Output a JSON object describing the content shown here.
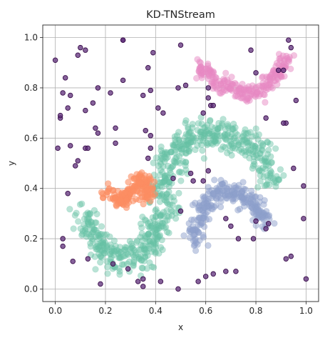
{
  "chart_data": {
    "type": "scatter",
    "title": "KD-TNStream",
    "xlabel": "x",
    "ylabel": "y",
    "xlim": [
      -0.05,
      1.05
    ],
    "ylim": [
      -0.05,
      1.05
    ],
    "xticks": [
      "0.0",
      "0.2",
      "0.4",
      "0.6",
      "0.8",
      "1.0"
    ],
    "yticks": [
      "0.0",
      "0.2",
      "0.4",
      "0.6",
      "0.8",
      "1.0"
    ],
    "grid": true,
    "legend": "none",
    "clusters": [
      {
        "color": "#66c2a5",
        "alpha": 0.45,
        "shape": "S-shaped band",
        "path": [
          [
            0.1,
            0.28
          ],
          [
            0.13,
            0.27
          ],
          [
            0.15,
            0.24
          ],
          [
            0.17,
            0.19
          ],
          [
            0.2,
            0.15
          ],
          [
            0.24,
            0.13
          ],
          [
            0.29,
            0.12
          ],
          [
            0.34,
            0.13
          ],
          [
            0.38,
            0.18
          ],
          [
            0.41,
            0.25
          ],
          [
            0.43,
            0.33
          ],
          [
            0.44,
            0.41
          ],
          [
            0.45,
            0.48
          ],
          [
            0.47,
            0.54
          ],
          [
            0.51,
            0.58
          ],
          [
            0.56,
            0.61
          ],
          [
            0.62,
            0.62
          ],
          [
            0.68,
            0.61
          ],
          [
            0.74,
            0.59
          ],
          [
            0.79,
            0.56
          ],
          [
            0.83,
            0.51
          ],
          [
            0.86,
            0.46
          ],
          [
            0.87,
            0.42
          ]
        ],
        "width": 0.07
      },
      {
        "color": "#fc8d62",
        "alpha": 0.6,
        "shape": "small wave",
        "path": [
          [
            0.19,
            0.39
          ],
          [
            0.22,
            0.38
          ],
          [
            0.25,
            0.36
          ],
          [
            0.28,
            0.35
          ],
          [
            0.3,
            0.36
          ],
          [
            0.31,
            0.4
          ],
          [
            0.33,
            0.44
          ],
          [
            0.35,
            0.44
          ],
          [
            0.37,
            0.4
          ],
          [
            0.37,
            0.35
          ]
        ],
        "width": 0.035
      },
      {
        "color": "#8da0cb",
        "alpha": 0.5,
        "shape": "arc band",
        "path": [
          [
            0.56,
            0.19
          ],
          [
            0.56,
            0.24
          ],
          [
            0.58,
            0.3
          ],
          [
            0.61,
            0.35
          ],
          [
            0.65,
            0.38
          ],
          [
            0.7,
            0.39
          ],
          [
            0.75,
            0.38
          ],
          [
            0.79,
            0.34
          ],
          [
            0.82,
            0.3
          ],
          [
            0.84,
            0.26
          ]
        ],
        "width": 0.045
      },
      {
        "color": "#e78ac3",
        "alpha": 0.5,
        "shape": "W band",
        "path": [
          [
            0.57,
            0.89
          ],
          [
            0.6,
            0.86
          ],
          [
            0.64,
            0.83
          ],
          [
            0.68,
            0.81
          ],
          [
            0.73,
            0.79
          ],
          [
            0.77,
            0.78
          ],
          [
            0.81,
            0.79
          ],
          [
            0.84,
            0.81
          ],
          [
            0.87,
            0.84
          ],
          [
            0.9,
            0.88
          ],
          [
            0.92,
            0.92
          ]
        ],
        "width": 0.035
      }
    ],
    "noise": {
      "color": "#5e2d79",
      "edgecolor": "#3b0f4c",
      "points": [
        [
          0.0,
          0.91
        ],
        [
          0.02,
          0.68
        ],
        [
          0.03,
          0.78
        ],
        [
          0.04,
          0.84
        ],
        [
          0.05,
          0.72
        ],
        [
          0.06,
          0.77
        ],
        [
          0.09,
          0.93
        ],
        [
          0.1,
          0.96
        ],
        [
          0.12,
          0.95
        ],
        [
          0.12,
          0.71
        ],
        [
          0.15,
          0.74
        ],
        [
          0.17,
          0.8
        ],
        [
          0.22,
          0.78
        ],
        [
          0.27,
          0.99
        ],
        [
          0.27,
          0.99
        ],
        [
          0.27,
          0.83
        ],
        [
          0.35,
          0.77
        ],
        [
          0.37,
          0.88
        ],
        [
          0.38,
          0.79
        ],
        [
          0.39,
          0.94
        ],
        [
          0.41,
          0.72
        ],
        [
          0.43,
          0.7
        ],
        [
          0.49,
          0.8
        ],
        [
          0.5,
          0.97
        ],
        [
          0.52,
          0.81
        ],
        [
          0.59,
          0.7
        ],
        [
          0.61,
          0.76
        ],
        [
          0.61,
          0.8
        ],
        [
          0.62,
          0.73
        ],
        [
          0.63,
          0.73
        ],
        [
          0.78,
          0.95
        ],
        [
          0.8,
          0.86
        ],
        [
          0.84,
          0.68
        ],
        [
          0.89,
          0.87
        ],
        [
          0.91,
          0.87
        ],
        [
          0.92,
          0.66
        ],
        [
          0.93,
          0.99
        ],
        [
          0.94,
          0.96
        ],
        [
          0.96,
          0.75
        ],
        [
          0.02,
          0.69
        ],
        [
          0.01,
          0.56
        ],
        [
          0.06,
          0.57
        ],
        [
          0.08,
          0.49
        ],
        [
          0.09,
          0.51
        ],
        [
          0.12,
          0.56
        ],
        [
          0.13,
          0.56
        ],
        [
          0.16,
          0.64
        ],
        [
          0.17,
          0.62
        ],
        [
          0.24,
          0.58
        ],
        [
          0.24,
          0.64
        ],
        [
          0.36,
          0.63
        ],
        [
          0.37,
          0.52
        ],
        [
          0.38,
          0.56
        ],
        [
          0.38,
          0.61
        ],
        [
          0.47,
          0.44
        ],
        [
          0.54,
          0.46
        ],
        [
          0.59,
          0.43
        ],
        [
          0.61,
          0.47
        ],
        [
          0.7,
          0.25
        ],
        [
          0.68,
          0.28
        ],
        [
          0.79,
          0.2
        ],
        [
          0.8,
          0.27
        ],
        [
          0.84,
          0.24
        ],
        [
          0.85,
          0.26
        ],
        [
          0.91,
          0.66
        ],
        [
          0.95,
          0.48
        ],
        [
          0.99,
          0.41
        ],
        [
          0.99,
          0.28
        ],
        [
          1.0,
          0.04
        ],
        [
          0.94,
          0.13
        ],
        [
          0.92,
          0.12
        ],
        [
          0.72,
          0.07
        ],
        [
          0.68,
          0.07
        ],
        [
          0.63,
          0.06
        ],
        [
          0.6,
          0.05
        ],
        [
          0.57,
          0.03
        ],
        [
          0.49,
          0.0
        ],
        [
          0.42,
          0.03
        ],
        [
          0.35,
          0.04
        ],
        [
          0.35,
          0.01
        ],
        [
          0.33,
          0.03
        ],
        [
          0.29,
          0.08
        ],
        [
          0.23,
          0.1
        ],
        [
          0.18,
          0.02
        ],
        [
          0.13,
          0.12
        ],
        [
          0.07,
          0.11
        ],
        [
          0.03,
          0.2
        ],
        [
          0.03,
          0.17
        ],
        [
          0.05,
          0.38
        ],
        [
          0.5,
          0.31
        ],
        [
          0.55,
          0.43
        ],
        [
          0.73,
          0.2
        ]
      ]
    }
  }
}
